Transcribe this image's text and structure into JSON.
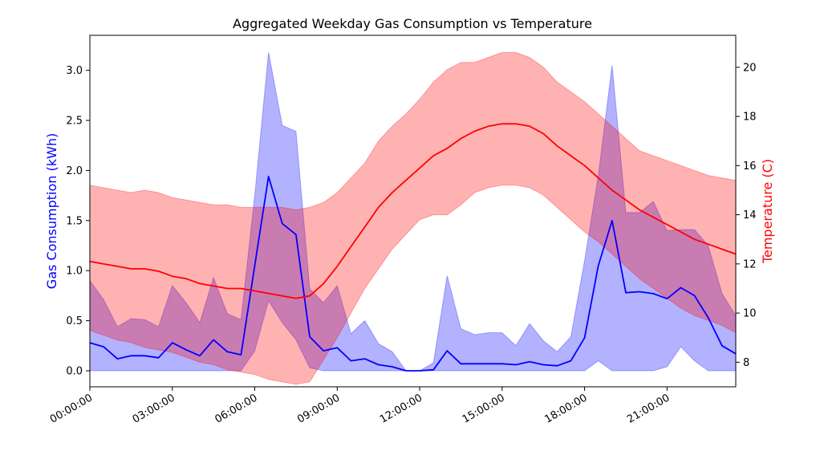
{
  "chart_data": {
    "type": "line",
    "title": "Aggregated Weekday Gas Consumption vs Temperature",
    "xlabel": "",
    "x_tick_labels": [
      "00:00:00",
      "03:00:00",
      "06:00:00",
      "09:00:00",
      "12:00:00",
      "15:00:00",
      "18:00:00",
      "21:00:00"
    ],
    "x_tick_hours": [
      0,
      3,
      6,
      9,
      12,
      15,
      18,
      21
    ],
    "xlim_hours": [
      0,
      23.5
    ],
    "x_hours": [
      0,
      0.5,
      1,
      1.5,
      2,
      2.5,
      3,
      3.5,
      4,
      4.5,
      5,
      5.5,
      6,
      6.5,
      7,
      7.5,
      8,
      8.5,
      9,
      9.5,
      10,
      10.5,
      11,
      11.5,
      12,
      12.5,
      13,
      13.5,
      14,
      14.5,
      15,
      15.5,
      16,
      16.5,
      17,
      17.5,
      18,
      18.5,
      19,
      19.5,
      20,
      20.5,
      21,
      21.5,
      22,
      22.5,
      23,
      23.5
    ],
    "left_axis": {
      "label": "Gas Consumption (kWh)",
      "color": "#0000ff",
      "ylim": [
        -0.16,
        3.35
      ],
      "ticks": [
        0.0,
        0.5,
        1.0,
        1.5,
        2.0,
        2.5,
        3.0
      ],
      "tick_labels": [
        "0.0",
        "0.5",
        "1.0",
        "1.5",
        "2.0",
        "2.5",
        "3.0"
      ]
    },
    "right_axis": {
      "label": "Temperature (C)",
      "color": "#ff0000",
      "ylim": [
        7.0,
        21.3
      ],
      "ticks": [
        8,
        10,
        12,
        14,
        16,
        18,
        20
      ],
      "tick_labels": [
        "8",
        "10",
        "12",
        "14",
        "16",
        "18",
        "20"
      ]
    },
    "series": [
      {
        "axis": "left",
        "color": "#0000ff",
        "band_color": "#0000ff",
        "band_opacity": 0.3,
        "mean": [
          0.28,
          0.24,
          0.12,
          0.15,
          0.15,
          0.13,
          0.28,
          0.21,
          0.15,
          0.31,
          0.19,
          0.16,
          1.05,
          1.94,
          1.47,
          1.36,
          0.34,
          0.2,
          0.23,
          0.1,
          0.12,
          0.06,
          0.04,
          0.0,
          0.0,
          0.01,
          0.2,
          0.07,
          0.07,
          0.07,
          0.07,
          0.06,
          0.09,
          0.06,
          0.05,
          0.1,
          0.33,
          1.05,
          1.5,
          0.78,
          0.79,
          0.77,
          0.72,
          0.83,
          0.75,
          0.53,
          0.25,
          0.17
        ],
        "lower": [
          0,
          0,
          0,
          0,
          0,
          0,
          0,
          0,
          0,
          0,
          0,
          0,
          0.2,
          0.7,
          0.48,
          0.31,
          0.03,
          0,
          0,
          0,
          0,
          0,
          0,
          0,
          0,
          0,
          0,
          0,
          0,
          0,
          0,
          0,
          0,
          0,
          0,
          0,
          0,
          0.1,
          0,
          0,
          0,
          0,
          0.04,
          0.24,
          0.1,
          0,
          0,
          0
        ],
        "upper": [
          0.9,
          0.71,
          0.44,
          0.52,
          0.51,
          0.44,
          0.85,
          0.68,
          0.48,
          0.93,
          0.57,
          0.51,
          1.75,
          3.18,
          2.45,
          2.39,
          0.82,
          0.68,
          0.85,
          0.37,
          0.5,
          0.27,
          0.19,
          0.0,
          0.0,
          0.08,
          0.95,
          0.42,
          0.36,
          0.38,
          0.38,
          0.25,
          0.47,
          0.3,
          0.19,
          0.34,
          1.1,
          1.95,
          3.05,
          1.58,
          1.58,
          1.69,
          1.4,
          1.41,
          1.41,
          1.25,
          0.77,
          0.55
        ]
      },
      {
        "axis": "right",
        "color": "#ff0000",
        "band_color": "#ff0000",
        "band_opacity": 0.3,
        "mean": [
          12.1,
          12.0,
          11.9,
          11.8,
          11.8,
          11.7,
          11.5,
          11.4,
          11.2,
          11.1,
          11.0,
          11.0,
          10.9,
          10.8,
          10.7,
          10.6,
          10.7,
          11.2,
          11.9,
          12.7,
          13.5,
          14.3,
          14.9,
          15.4,
          15.9,
          16.4,
          16.7,
          17.1,
          17.4,
          17.6,
          17.7,
          17.7,
          17.6,
          17.3,
          16.8,
          16.4,
          16.0,
          15.5,
          15.0,
          14.6,
          14.2,
          13.9,
          13.6,
          13.3,
          13.0,
          12.8,
          12.6,
          12.4
        ],
        "lower": [
          9.3,
          9.1,
          8.9,
          8.8,
          8.6,
          8.5,
          8.4,
          8.2,
          8.0,
          7.9,
          7.7,
          7.6,
          7.5,
          7.3,
          7.2,
          7.1,
          7.2,
          8.1,
          9.0,
          10.0,
          11.0,
          11.8,
          12.6,
          13.2,
          13.8,
          14.0,
          14.0,
          14.4,
          14.9,
          15.1,
          15.2,
          15.2,
          15.1,
          14.8,
          14.3,
          13.8,
          13.3,
          12.9,
          12.4,
          11.9,
          11.4,
          11.0,
          10.6,
          10.2,
          9.9,
          9.7,
          9.5,
          9.2
        ],
        "upper": [
          15.2,
          15.1,
          15.0,
          14.9,
          15.0,
          14.9,
          14.7,
          14.6,
          14.5,
          14.4,
          14.4,
          14.3,
          14.3,
          14.3,
          14.3,
          14.2,
          14.3,
          14.5,
          14.9,
          15.5,
          16.1,
          17.0,
          17.6,
          18.1,
          18.7,
          19.4,
          19.9,
          20.2,
          20.2,
          20.4,
          20.6,
          20.6,
          20.4,
          20.0,
          19.4,
          19.0,
          18.6,
          18.1,
          17.6,
          17.1,
          16.6,
          16.4,
          16.2,
          16.0,
          15.8,
          15.6,
          15.5,
          15.4
        ]
      }
    ]
  }
}
